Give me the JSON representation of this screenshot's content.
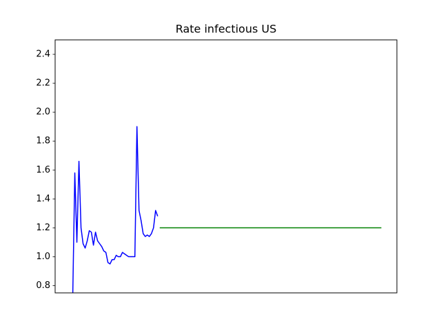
{
  "chart_data": {
    "type": "line",
    "title": "Rate infectious US",
    "xlim": [
      -7.5,
      157.5
    ],
    "ylim": [
      0.75,
      2.5
    ],
    "yticks": [
      0.8,
      {
        "value": 1,
        "label": "1.0"
      },
      1.2,
      1.4,
      1.6,
      1.8,
      {
        "value": 2,
        "label": "2.0"
      },
      2.2,
      2.4
    ],
    "series": [
      {
        "color": "#0000ff",
        "x": [
          1,
          2,
          3,
          4,
          5,
          6,
          7,
          8,
          9,
          10,
          11,
          12,
          13,
          14,
          15,
          16,
          17,
          18,
          19,
          20,
          21,
          22,
          23,
          24,
          25,
          26,
          27,
          28,
          29,
          30,
          31,
          32,
          33,
          34,
          35,
          36,
          37,
          38,
          39,
          40,
          41,
          42
        ],
        "values": [
          0.72,
          1.58,
          1.1,
          1.66,
          1.2,
          1.09,
          1.06,
          1.11,
          1.18,
          1.17,
          1.08,
          1.17,
          1.11,
          1.09,
          1.07,
          1.04,
          1.03,
          0.96,
          0.95,
          0.98,
          0.98,
          1.01,
          1.0,
          1.0,
          1.03,
          1.02,
          1.01,
          1.0,
          1.0,
          1.0,
          1.0,
          1.9,
          1.32,
          1.25,
          1.16,
          1.14,
          1.15,
          1.14,
          1.16,
          1.2,
          1.32,
          1.28
        ]
      },
      {
        "color": "#008000",
        "x": [
          43,
          150
        ],
        "values": [
          1.2,
          1.2
        ]
      }
    ]
  }
}
